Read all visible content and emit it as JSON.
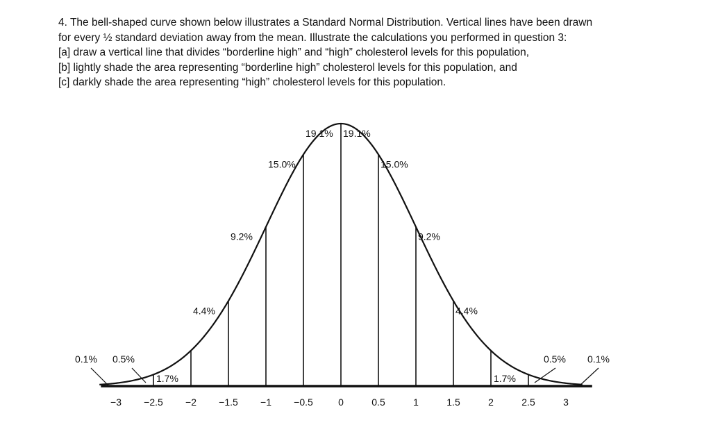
{
  "question": {
    "lines": [
      "4. The bell-shaped curve shown below illustrates a Standard Normal Distribution. Vertical lines have been drawn",
      "for every ½ standard deviation away from the mean. Illustrate the calculations you performed in question 3:",
      "[a] draw a vertical line that divides “borderline high” and “high” cholesterol levels for this population,",
      "[b] lightly shade the area representing “borderline high” cholesterol levels for this population, and",
      "[c] darkly shade the area representing “high” cholesterol levels for this population."
    ]
  },
  "chart_data": {
    "type": "area",
    "title": "Standard Normal Distribution",
    "x_ticks": [
      -3,
      -2.5,
      -2,
      -1.5,
      -1,
      -0.5,
      0,
      0.5,
      1,
      1.5,
      2,
      2.5,
      3
    ],
    "tick_labels": [
      "−3",
      "−2.5",
      "−2",
      "−1.5",
      "−1",
      "−0.5",
      "0",
      "0.5",
      "1",
      "1.5",
      "2",
      "2.5",
      "3"
    ],
    "xlim": [
      -3.3,
      3.3
    ],
    "vertical_lines_at": [
      -2.5,
      -2,
      -1.5,
      -1,
      -0.5,
      0,
      0.5,
      1,
      1.5,
      2,
      2.5
    ],
    "regions": [
      {
        "from": null,
        "to": -3,
        "label": "0.1%"
      },
      {
        "from": -3,
        "to": -2.5,
        "label": "0.5%"
      },
      {
        "from": -2.5,
        "to": -2,
        "label": "1.7%"
      },
      {
        "from": -2,
        "to": -1.5,
        "label": "4.4%"
      },
      {
        "from": -1.5,
        "to": -1,
        "label": "9.2%"
      },
      {
        "from": -1,
        "to": -0.5,
        "label": "15.0%"
      },
      {
        "from": -0.5,
        "to": 0,
        "label": "19.1%"
      },
      {
        "from": 0,
        "to": 0.5,
        "label": "19.1%"
      },
      {
        "from": 0.5,
        "to": 1,
        "label": "15.0%"
      },
      {
        "from": 1,
        "to": 1.5,
        "label": "9.2%"
      },
      {
        "from": 1.5,
        "to": 2,
        "label": "4.4%"
      },
      {
        "from": 2,
        "to": 2.5,
        "label": "1.7%"
      },
      {
        "from": 2.5,
        "to": 3,
        "label": "0.5%"
      },
      {
        "from": 3,
        "to": null,
        "label": "0.1%"
      }
    ],
    "colors": {
      "line": "#111111",
      "text": "#111111"
    }
  }
}
